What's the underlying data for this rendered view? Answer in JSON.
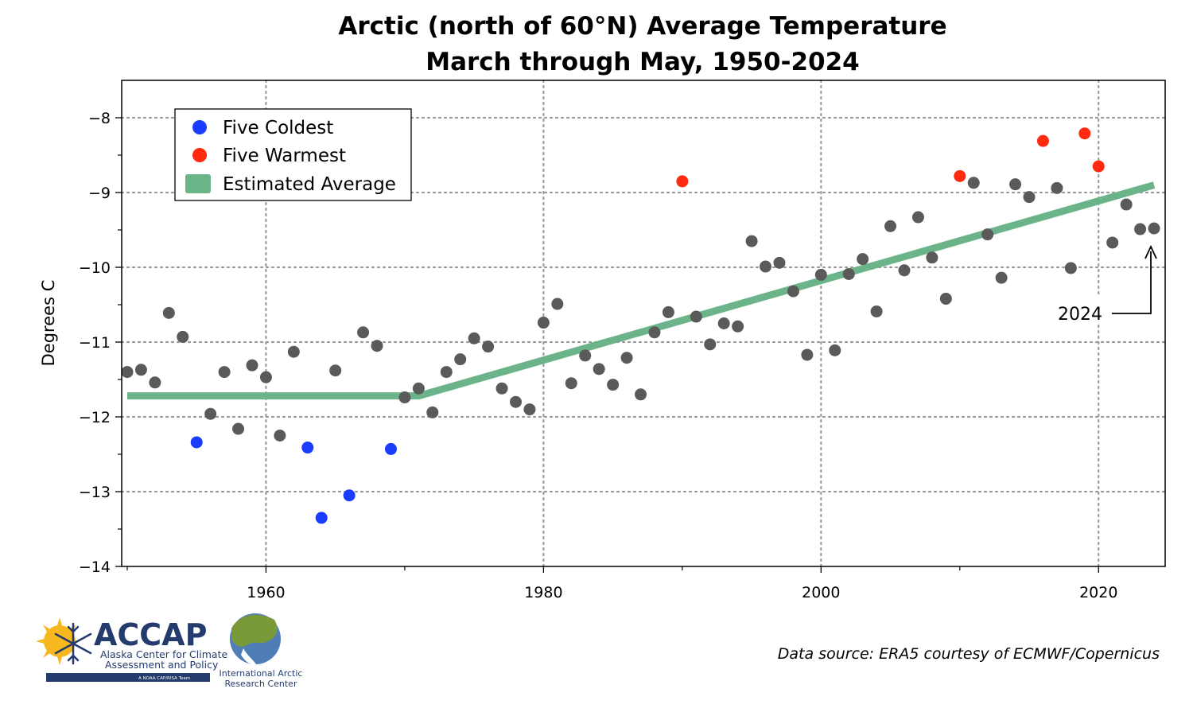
{
  "chart_data": {
    "type": "scatter",
    "title": [
      "Arctic (north of 60°N) Average Temperature",
      "March through May, 1950-2024"
    ],
    "xlabel": "",
    "ylabel": "Degrees C",
    "xlim": [
      1949.6,
      2024.8
    ],
    "ylim": [
      -14,
      -7.5
    ],
    "xticks": [
      1960,
      1980,
      2000,
      2020
    ],
    "yticks": [
      -8,
      -9,
      -10,
      -11,
      -12,
      -13,
      -14
    ],
    "yticks_labels": [
      "−8",
      "−9",
      "−10",
      "−11",
      "−12",
      "−13",
      "−14"
    ],
    "grid": true,
    "legend_position": "top-left",
    "legend": [
      {
        "label": "Five Coldest",
        "color": "#1a3cff",
        "kind": "dot"
      },
      {
        "label": "Five Warmest",
        "color": "#ff2a10",
        "kind": "dot"
      },
      {
        "label": "Estimated Average",
        "color": "#6bb48a",
        "kind": "band"
      }
    ],
    "colors": {
      "normal": "#5a5a5a",
      "coldest": "#1a3cff",
      "warmest": "#ff2a10",
      "trend": "#6bb48a"
    },
    "points": [
      [
        1950,
        -11.4,
        "normal"
      ],
      [
        1951,
        -11.37,
        "normal"
      ],
      [
        1952,
        -11.54,
        "normal"
      ],
      [
        1953,
        -10.61,
        "normal"
      ],
      [
        1954,
        -10.93,
        "normal"
      ],
      [
        1955,
        -12.34,
        "coldest"
      ],
      [
        1956,
        -11.96,
        "normal"
      ],
      [
        1957,
        -11.4,
        "normal"
      ],
      [
        1958,
        -12.16,
        "normal"
      ],
      [
        1959,
        -11.31,
        "normal"
      ],
      [
        1960,
        -11.47,
        "normal"
      ],
      [
        1961,
        -12.25,
        "normal"
      ],
      [
        1962,
        -11.13,
        "normal"
      ],
      [
        1963,
        -12.41,
        "coldest"
      ],
      [
        1964,
        -13.35,
        "coldest"
      ],
      [
        1965,
        -11.38,
        "normal"
      ],
      [
        1966,
        -13.05,
        "coldest"
      ],
      [
        1967,
        -10.87,
        "normal"
      ],
      [
        1968,
        -11.05,
        "normal"
      ],
      [
        1969,
        -12.43,
        "coldest"
      ],
      [
        1970,
        -11.74,
        "normal"
      ],
      [
        1971,
        -11.62,
        "normal"
      ],
      [
        1972,
        -11.94,
        "normal"
      ],
      [
        1973,
        -11.4,
        "normal"
      ],
      [
        1974,
        -11.23,
        "normal"
      ],
      [
        1975,
        -10.95,
        "normal"
      ],
      [
        1976,
        -11.06,
        "normal"
      ],
      [
        1977,
        -11.62,
        "normal"
      ],
      [
        1978,
        -11.8,
        "normal"
      ],
      [
        1979,
        -11.9,
        "normal"
      ],
      [
        1980,
        -10.74,
        "normal"
      ],
      [
        1981,
        -10.49,
        "normal"
      ],
      [
        1982,
        -11.55,
        "normal"
      ],
      [
        1983,
        -11.18,
        "normal"
      ],
      [
        1984,
        -11.36,
        "normal"
      ],
      [
        1985,
        -11.57,
        "normal"
      ],
      [
        1986,
        -11.21,
        "normal"
      ],
      [
        1987,
        -11.7,
        "normal"
      ],
      [
        1988,
        -10.87,
        "normal"
      ],
      [
        1989,
        -10.6,
        "normal"
      ],
      [
        1990,
        -8.85,
        "warmest"
      ],
      [
        1991,
        -10.66,
        "normal"
      ],
      [
        1992,
        -11.03,
        "normal"
      ],
      [
        1993,
        -10.75,
        "normal"
      ],
      [
        1994,
        -10.79,
        "normal"
      ],
      [
        1995,
        -9.65,
        "normal"
      ],
      [
        1996,
        -9.99,
        "normal"
      ],
      [
        1997,
        -9.94,
        "normal"
      ],
      [
        1998,
        -10.32,
        "normal"
      ],
      [
        1999,
        -11.17,
        "normal"
      ],
      [
        2000,
        -10.1,
        "normal"
      ],
      [
        2001,
        -11.11,
        "normal"
      ],
      [
        2002,
        -10.09,
        "normal"
      ],
      [
        2003,
        -9.89,
        "normal"
      ],
      [
        2004,
        -10.59,
        "normal"
      ],
      [
        2005,
        -9.45,
        "normal"
      ],
      [
        2006,
        -10.04,
        "normal"
      ],
      [
        2007,
        -9.33,
        "normal"
      ],
      [
        2008,
        -9.87,
        "normal"
      ],
      [
        2009,
        -10.42,
        "normal"
      ],
      [
        2010,
        -8.78,
        "warmest"
      ],
      [
        2011,
        -8.87,
        "normal"
      ],
      [
        2012,
        -9.56,
        "normal"
      ],
      [
        2013,
        -10.14,
        "normal"
      ],
      [
        2014,
        -8.89,
        "normal"
      ],
      [
        2015,
        -9.06,
        "normal"
      ],
      [
        2016,
        -8.31,
        "warmest"
      ],
      [
        2017,
        -8.94,
        "normal"
      ],
      [
        2018,
        -10.01,
        "normal"
      ],
      [
        2019,
        -8.21,
        "warmest"
      ],
      [
        2020,
        -8.65,
        "warmest"
      ],
      [
        2021,
        -9.67,
        "normal"
      ],
      [
        2022,
        -9.16,
        "normal"
      ],
      [
        2023,
        -9.49,
        "normal"
      ],
      [
        2024,
        -9.48,
        "normal"
      ]
    ],
    "trend_line": [
      [
        1950,
        -11.72
      ],
      [
        1971,
        -11.72
      ],
      [
        2024,
        -8.9
      ]
    ],
    "annotations": [
      {
        "text": "2024",
        "x": 2024,
        "y": -9.75
      }
    ]
  },
  "footer": {
    "source": "Data source: ERA5 courtesy of ECMWF/Copernicus",
    "logo_accap": {
      "name": "ACCAP",
      "line1": "Alaska Center for Climate",
      "line2": "Assessment and Policy",
      "tag": "A NOAA CAP/RISA Team"
    },
    "logo_iarc": {
      "line1": "International Arctic",
      "line2": "Research Center"
    }
  }
}
